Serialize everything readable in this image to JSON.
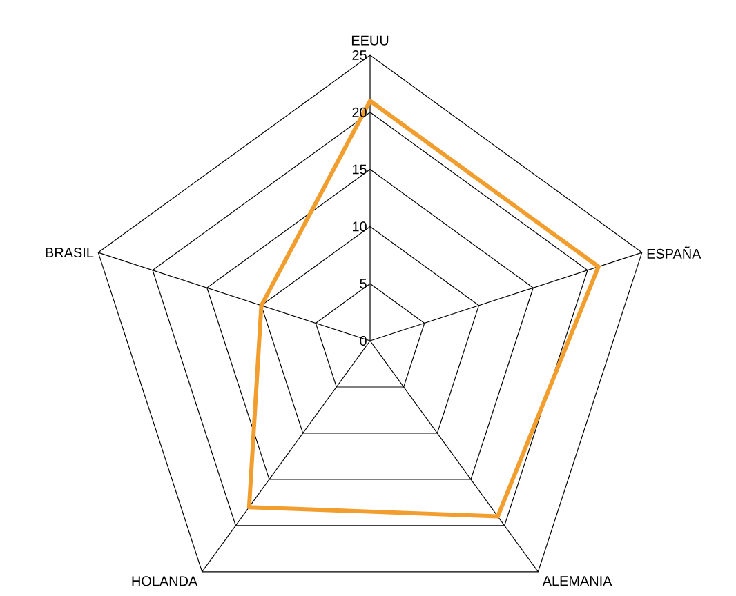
{
  "chart_data": {
    "type": "radar",
    "categories": [
      "EEUU",
      "ESPAÑA",
      "ALEMANIA",
      "HOLANDA",
      "BRASIL"
    ],
    "series": [
      {
        "color": "#f29e2e",
        "values": [
          21,
          21,
          19,
          18,
          10
        ]
      }
    ],
    "ylim": [
      0,
      25
    ],
    "yticks": [
      0,
      5,
      10,
      15,
      20,
      25
    ],
    "grid": true,
    "marker": "none",
    "line_style": "solid"
  }
}
